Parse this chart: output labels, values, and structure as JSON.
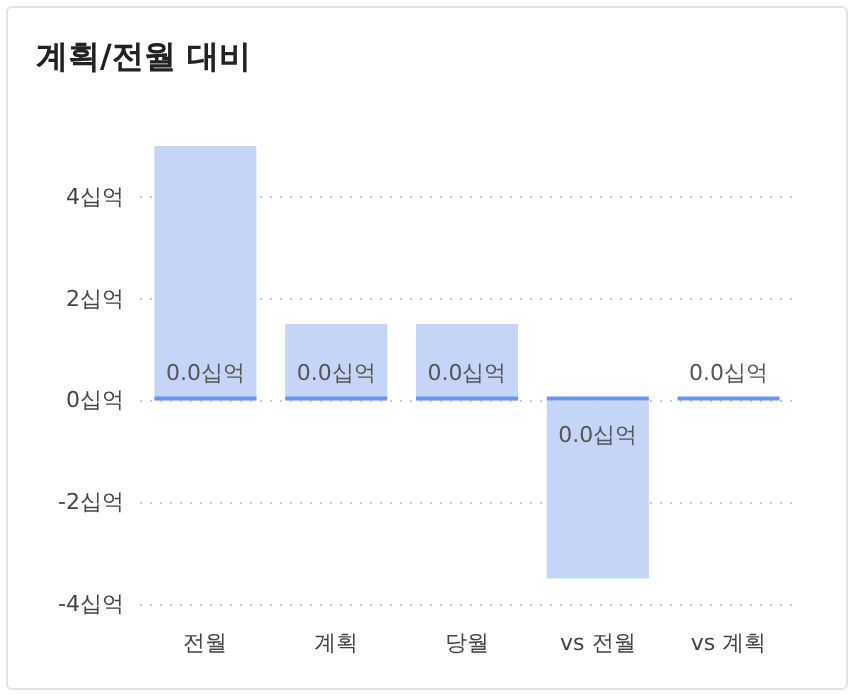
{
  "chart_data": {
    "type": "bar",
    "title": "계획/전월 대비",
    "categories": [
      "전월",
      "계획",
      "당월",
      "vs 전월",
      "vs 계획"
    ],
    "series": [
      {
        "color": "#c5d5f7",
        "values": [
          5,
          1.5,
          1.5,
          -3.5,
          null
        ]
      },
      {
        "color": "#6a95ea",
        "values": [
          0,
          0,
          0,
          0,
          0
        ],
        "value_labels": [
          "0.0십억",
          "0.0십억",
          "0.0십억",
          "0.0십억",
          "0.0십억"
        ]
      }
    ],
    "ylim": [
      -4,
      5
    ],
    "yticks": [
      {
        "value": -4,
        "label": "-4십억"
      },
      {
        "value": -2,
        "label": "-2십억"
      },
      {
        "value": 0,
        "label": "0십억"
      },
      {
        "value": 2,
        "label": "2십억"
      },
      {
        "value": 4,
        "label": "4십억"
      }
    ],
    "grid": "y"
  }
}
